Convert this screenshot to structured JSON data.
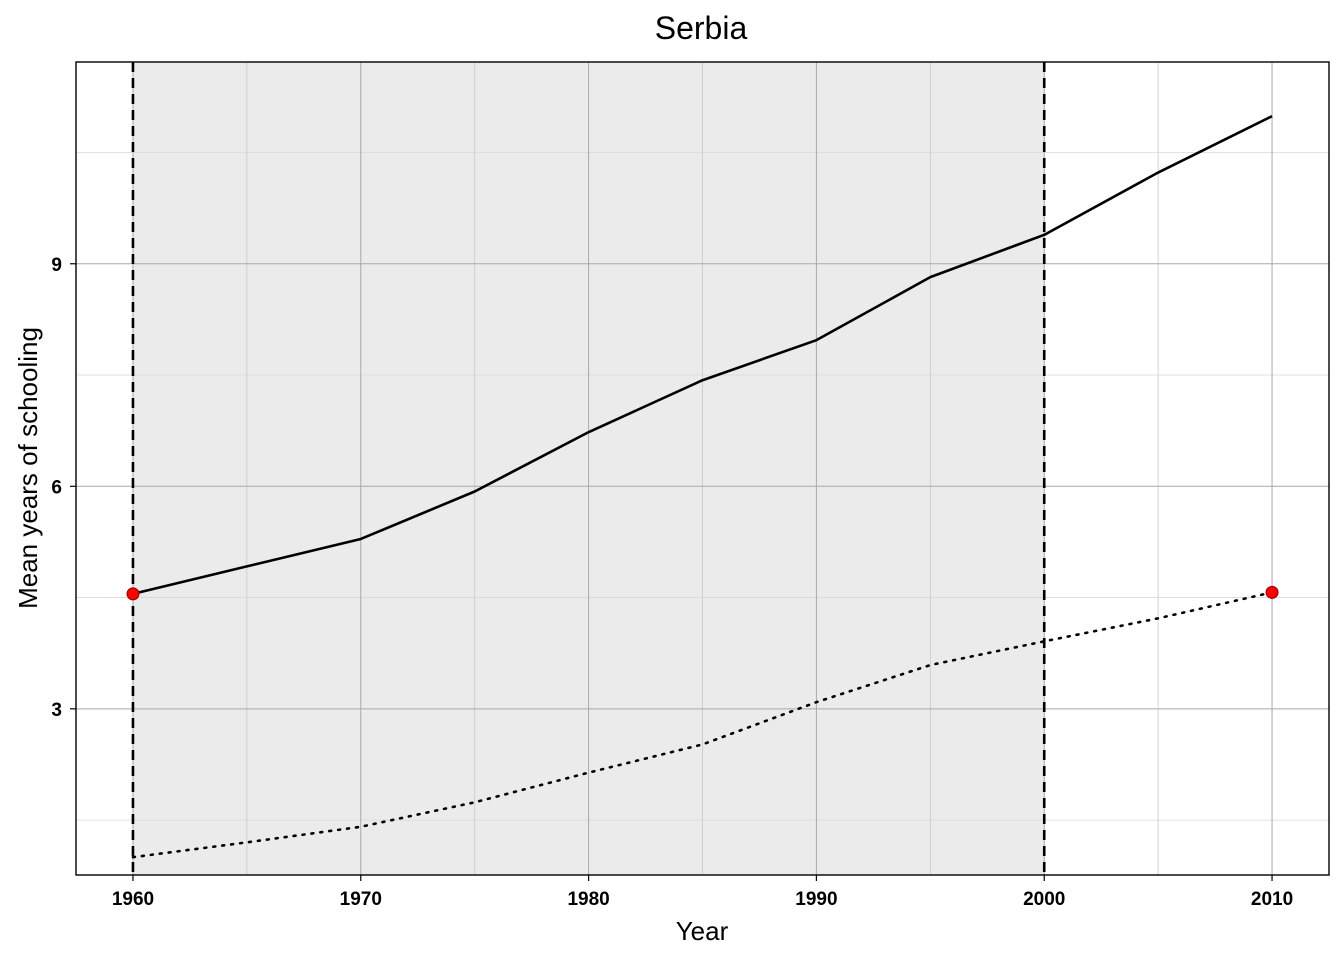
{
  "chart_data": {
    "type": "line",
    "title": "Serbia",
    "xlabel": "Year",
    "ylabel": "Mean years of schooling",
    "xlim": [
      1957.5,
      2012.5
    ],
    "ylim": [
      0.76,
      11.72
    ],
    "x_ticks": [
      1960,
      1970,
      1980,
      1990,
      2000,
      2010
    ],
    "x_tick_labels": [
      "1960",
      "1970",
      "1980",
      "1990",
      "2000",
      "2010"
    ],
    "x_minor_gridlines": [
      1965,
      1975,
      1985,
      1995,
      2005
    ],
    "y_ticks": [
      3,
      6,
      9
    ],
    "y_tick_labels": [
      "3",
      "6",
      "9"
    ],
    "y_minor_gridlines": [
      1.5,
      4.5,
      7.5,
      10.5
    ],
    "grid": true,
    "shaded_region": {
      "x_start": 1960,
      "x_end": 2000,
      "color": "#ebebeb"
    },
    "vertical_lines": [
      {
        "x": 1960,
        "style": "dashed"
      },
      {
        "x": 2000,
        "style": "dashed"
      }
    ],
    "series": [
      {
        "style": "solid",
        "color": "#000000",
        "x": [
          1960,
          1965,
          1970,
          1975,
          1980,
          1985,
          1990,
          1995,
          2000,
          2005,
          2010
        ],
        "values": [
          4.55,
          4.92,
          5.29,
          5.93,
          6.73,
          7.43,
          7.97,
          8.82,
          9.39,
          10.23,
          10.99
        ]
      },
      {
        "style": "dotted",
        "color": "#000000",
        "x": [
          1960,
          1965,
          1970,
          1975,
          1980,
          1985,
          1990,
          1995,
          2000,
          2005,
          2010
        ],
        "values": [
          1.0,
          1.2,
          1.41,
          1.74,
          2.14,
          2.52,
          3.09,
          3.59,
          3.91,
          4.22,
          4.57
        ]
      }
    ],
    "highlight_points": [
      {
        "x": 1960,
        "y": 4.55,
        "color": "#ff0000"
      },
      {
        "x": 2010,
        "y": 4.57,
        "color": "#ff0000"
      }
    ]
  }
}
